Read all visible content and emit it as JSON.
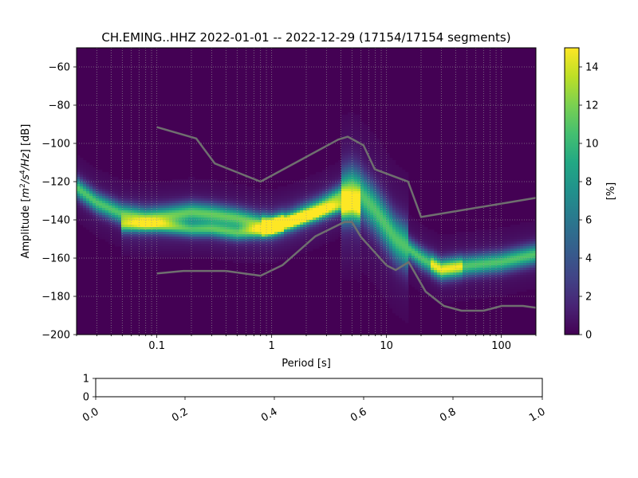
{
  "chart_data": [
    {
      "type": "heatmap",
      "title": "CH.EMING..HHZ   2022-01-01 -- 2022-12-29  (17154/17154 segments)",
      "xlabel": "Period [s]",
      "ylabel": "Amplitude [m²/s⁴/Hz] [dB]",
      "ylabel_parts": {
        "pre": "Amplitude [",
        "m": "m",
        "two": "2",
        "slash_s": "/s",
        "four": "4",
        "slash_hz": "/Hz",
        "post": "] [dB]"
      },
      "x_scale": "log",
      "xlim": [
        0.02,
        200
      ],
      "ylim": [
        -200,
        -50
      ],
      "x_ticks": [
        0.1,
        1,
        10,
        100
      ],
      "x_tick_labels": [
        "0.1",
        "1",
        "10",
        "100"
      ],
      "y_ticks": [
        -200,
        -180,
        -160,
        -140,
        -120,
        -100,
        -80,
        -60
      ],
      "y_tick_labels": [
        "−200",
        "−180",
        "−160",
        "−140",
        "−120",
        "−100",
        "−80",
        "−60"
      ],
      "grid": true,
      "colormap": "viridis",
      "colorbar": {
        "label": "[%]",
        "range": [
          0,
          15
        ],
        "ticks": [
          0,
          2,
          4,
          6,
          8,
          10,
          12,
          14
        ],
        "tick_labels": [
          "0",
          "2",
          "4",
          "6",
          "8",
          "10",
          "12",
          "14"
        ]
      },
      "density_ridges": [
        {
          "points": [
            [
              0.02,
              -123
            ],
            [
              0.03,
              -131
            ],
            [
              0.05,
              -137
            ],
            [
              0.08,
              -139
            ],
            [
              0.12,
              -138
            ],
            [
              0.2,
              -136
            ],
            [
              0.3,
              -137
            ],
            [
              0.5,
              -139
            ],
            [
              0.8,
              -142
            ],
            [
              1.0,
              -143
            ],
            [
              1.5,
              -140
            ],
            [
              2.5,
              -134
            ],
            [
              4,
              -127
            ],
            [
              5,
              -124
            ],
            [
              6,
              -127
            ],
            [
              8,
              -135
            ],
            [
              12,
              -150
            ],
            [
              20,
              -160
            ],
            [
              30,
              -166
            ],
            [
              50,
              -164
            ],
            [
              100,
              -162
            ],
            [
              200,
              -158
            ]
          ],
          "width": 3.5,
          "peak": 10
        },
        {
          "points": [
            [
              0.05,
              -143
            ],
            [
              0.1,
              -143
            ],
            [
              0.2,
              -145
            ],
            [
              0.3,
              -145
            ],
            [
              0.5,
              -147
            ],
            [
              0.8,
              -146
            ],
            [
              1.0,
              -144
            ],
            [
              1.5,
              -141
            ],
            [
              2.5,
              -137
            ],
            [
              4,
              -133
            ],
            [
              6,
              -134
            ]
          ],
          "width": 2.5,
          "peak": 9
        }
      ],
      "nlnm": {
        "period": [
          0.1,
          0.17,
          0.4,
          0.8,
          1.24,
          2.4,
          4.3,
          5.0,
          6.0,
          10.0,
          12.0,
          15.6,
          21.9,
          31.6,
          45.0,
          70.0,
          101.0,
          154.0,
          200.0
        ],
        "db": [
          -168.0,
          -166.7,
          -166.7,
          -169.2,
          -163.7,
          -148.6,
          -141.1,
          -141.1,
          -149.0,
          -163.8,
          -166.2,
          -162.1,
          -177.5,
          -185.0,
          -187.5,
          -187.5,
          -185.0,
          -185.0,
          -185.9
        ]
      },
      "nhnm": {
        "period": [
          0.1,
          0.22,
          0.32,
          0.8,
          3.8,
          4.6,
          6.3,
          7.9,
          15.4,
          20.0,
          200.0
        ],
        "db": [
          -91.5,
          -97.4,
          -110.5,
          -120.0,
          -98.0,
          -96.5,
          -101.0,
          -113.5,
          -120.0,
          -138.5,
          -128.5
        ]
      }
    },
    {
      "type": "empty",
      "xlim": [
        0.0,
        1.0
      ],
      "ylim": [
        0,
        1
      ],
      "x_ticks": [
        0.0,
        0.2,
        0.4,
        0.6,
        0.8,
        1.0
      ],
      "x_tick_labels": [
        "0.0",
        "0.2",
        "0.4",
        "0.6",
        "0.8",
        "1.0"
      ],
      "y_ticks": [
        0,
        1
      ],
      "y_tick_labels": [
        "0",
        "1"
      ]
    }
  ],
  "colors": {
    "model_curve": "#6f6f6f",
    "grid": "#9a9a9a",
    "background_low": "#440154",
    "peak": "#fde725"
  }
}
